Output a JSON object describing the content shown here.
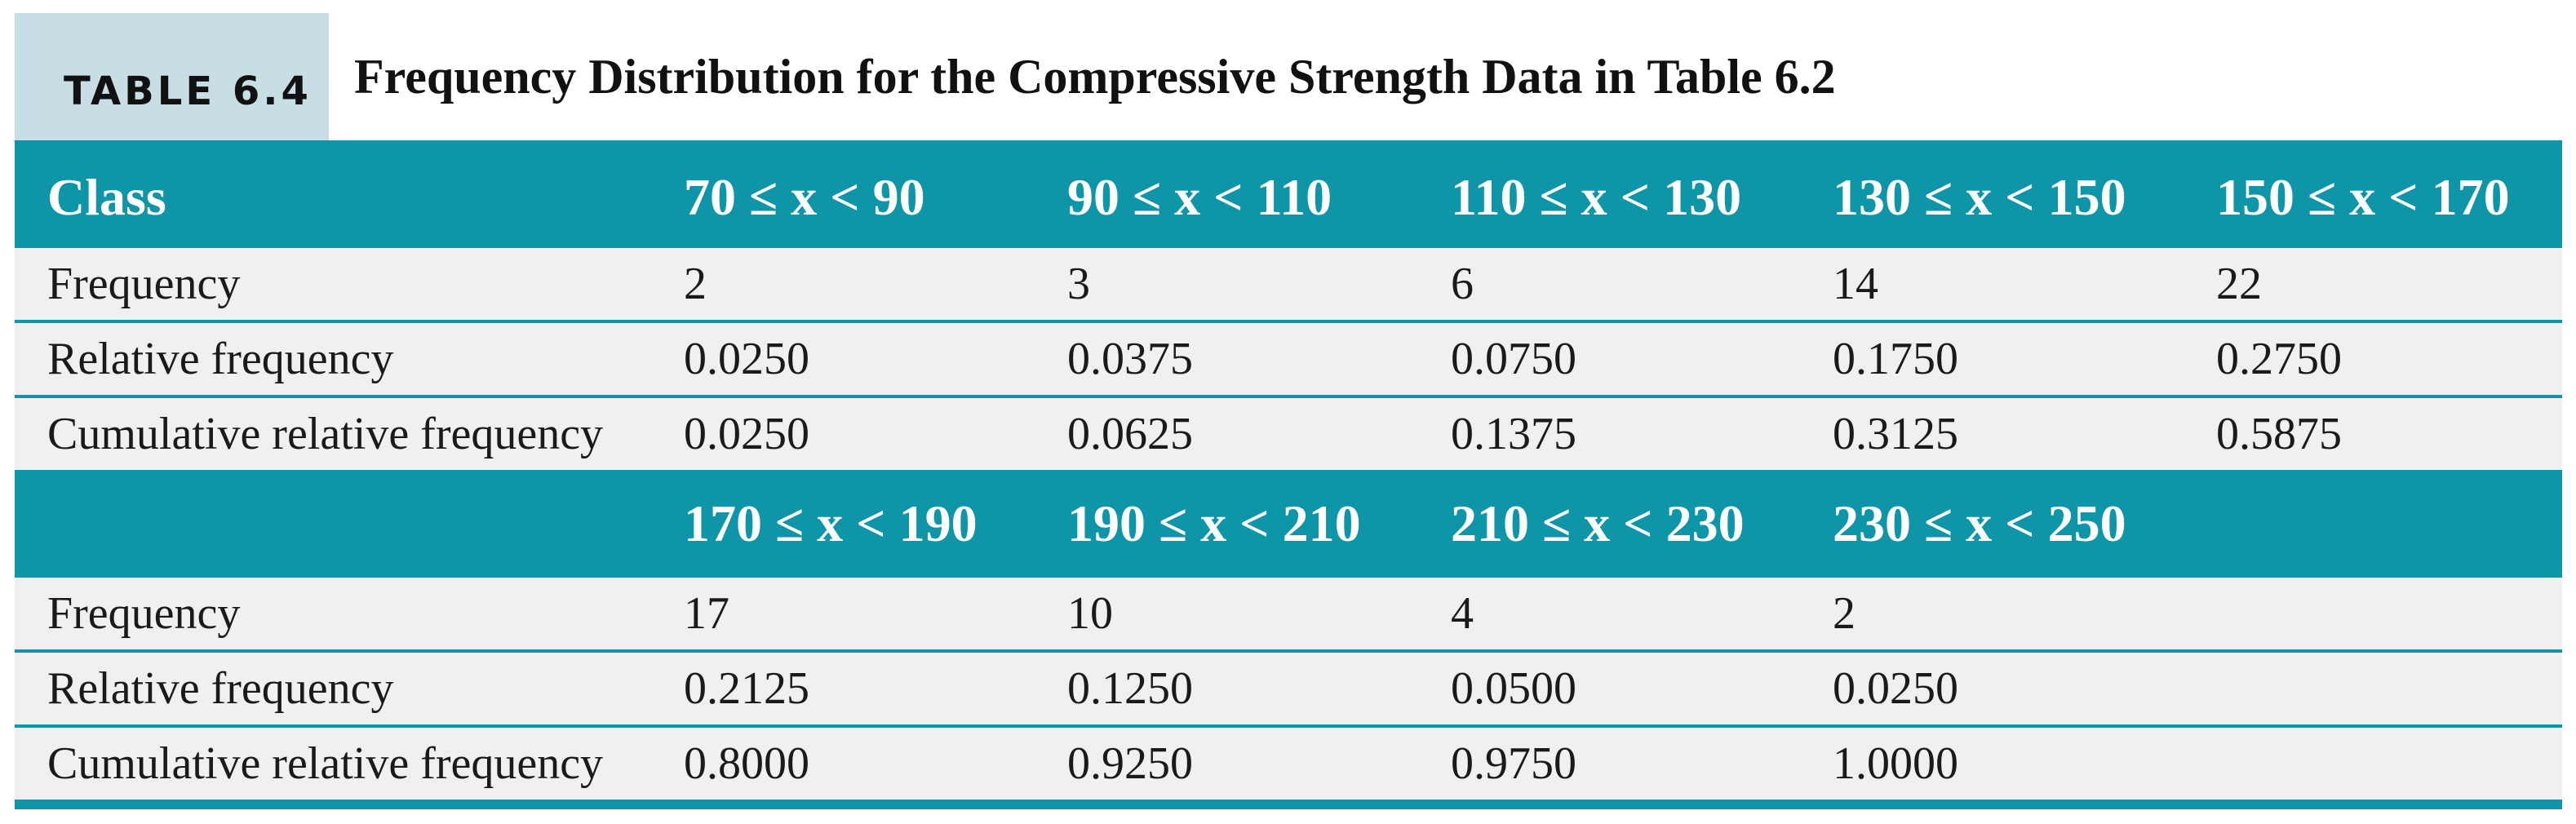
{
  "caption": {
    "label": "TABLE 6.4",
    "title": "Frequency Distribution for the Compressive Strength Data in Table 6.2"
  },
  "block1": {
    "header": [
      "Class",
      "70 ≤ x < 90",
      "90 ≤ x < 110",
      "110 ≤ x < 130",
      "130 ≤ x < 150",
      "150 ≤ x < 170"
    ],
    "rows": [
      {
        "label": "Frequency",
        "values": [
          "2",
          "3",
          "6",
          "14",
          "22"
        ]
      },
      {
        "label": "Relative frequency",
        "values": [
          "0.0250",
          "0.0375",
          "0.0750",
          "0.1750",
          "0.2750"
        ]
      },
      {
        "label": "Cumulative relative frequency",
        "values": [
          "0.0250",
          "0.0625",
          "0.1375",
          "0.3125",
          "0.5875"
        ]
      }
    ]
  },
  "block2": {
    "header": [
      "",
      "170 ≤ x < 190",
      "190 ≤ x < 210",
      "210 ≤ x < 230",
      "230 ≤ x < 250"
    ],
    "rows": [
      {
        "label": "Frequency",
        "values": [
          "17",
          "10",
          "4",
          "2"
        ]
      },
      {
        "label": "Relative frequency",
        "values": [
          "0.2125",
          "0.1250",
          "0.0500",
          "0.0250"
        ]
      },
      {
        "label": "Cumulative relative frequency",
        "values": [
          "0.8000",
          "0.9250",
          "0.9750",
          "1.0000"
        ]
      }
    ]
  },
  "colors": {
    "accent": "#0e96a8",
    "label_box": "#c7dfe4",
    "row_bg": "#f0f0f0"
  }
}
